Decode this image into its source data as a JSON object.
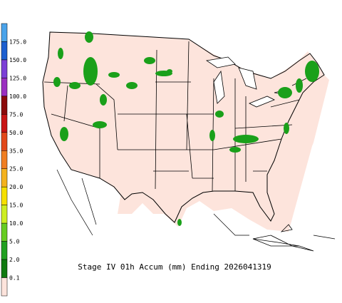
{
  "title": "Stage IV 01h Accum (mm) Ending 2026041319",
  "legend": {
    "labels": [
      "175.0",
      "150.0",
      "125.0",
      "100.0",
      "75.0",
      "50.0",
      "35.0",
      "25.0",
      "20.0",
      "15.0",
      "10.0",
      "5.0",
      "2.0",
      "0.1"
    ],
    "colors": [
      "#4aa3ea",
      "#1c5fd0",
      "#7b3fd6",
      "#9a2fc0",
      "#8a0a0a",
      "#c81414",
      "#e2481a",
      "#f07e22",
      "#f4b21e",
      "#f6e000",
      "#cdee22",
      "#66cc22",
      "#20a020",
      "#107a10",
      "#fde4dc"
    ]
  }
}
